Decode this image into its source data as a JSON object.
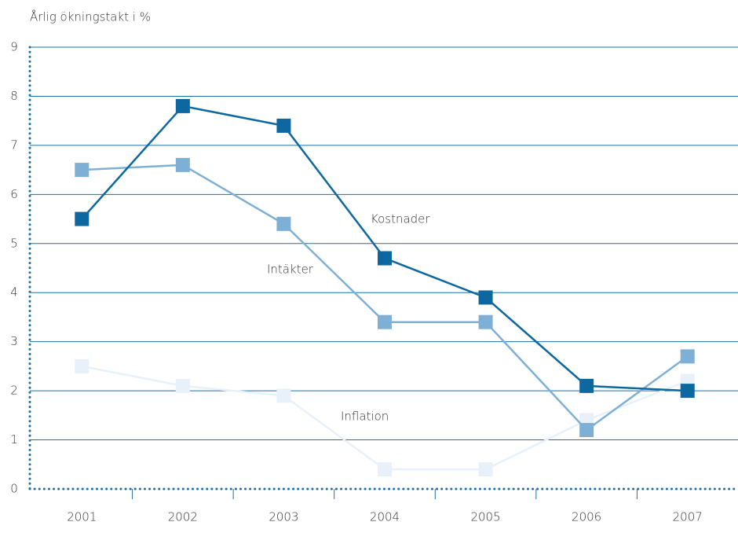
{
  "chart_data": {
    "type": "line",
    "y_axis_label": "Årlig ökningstakt i %",
    "categories": [
      "2001",
      "2002",
      "2003",
      "2004",
      "2005",
      "2006",
      "2007"
    ],
    "series": [
      {
        "name": "Kostnader",
        "color": "#0d68a0",
        "values": [
          5.5,
          7.8,
          7.4,
          4.7,
          3.9,
          2.1,
          2.0
        ]
      },
      {
        "name": "Intäkter",
        "color": "#7eb0d5",
        "values": [
          6.5,
          6.6,
          5.4,
          3.4,
          3.4,
          1.2,
          2.7
        ]
      },
      {
        "name": "Inflation",
        "color": "#e8f1f9",
        "values": [
          2.5,
          2.1,
          1.9,
          0.4,
          0.4,
          1.4,
          2.2
        ]
      }
    ],
    "ylim": [
      0,
      9
    ],
    "yticks": [
      0,
      1,
      2,
      3,
      4,
      5,
      6,
      7,
      8,
      9
    ],
    "grid": true
  }
}
